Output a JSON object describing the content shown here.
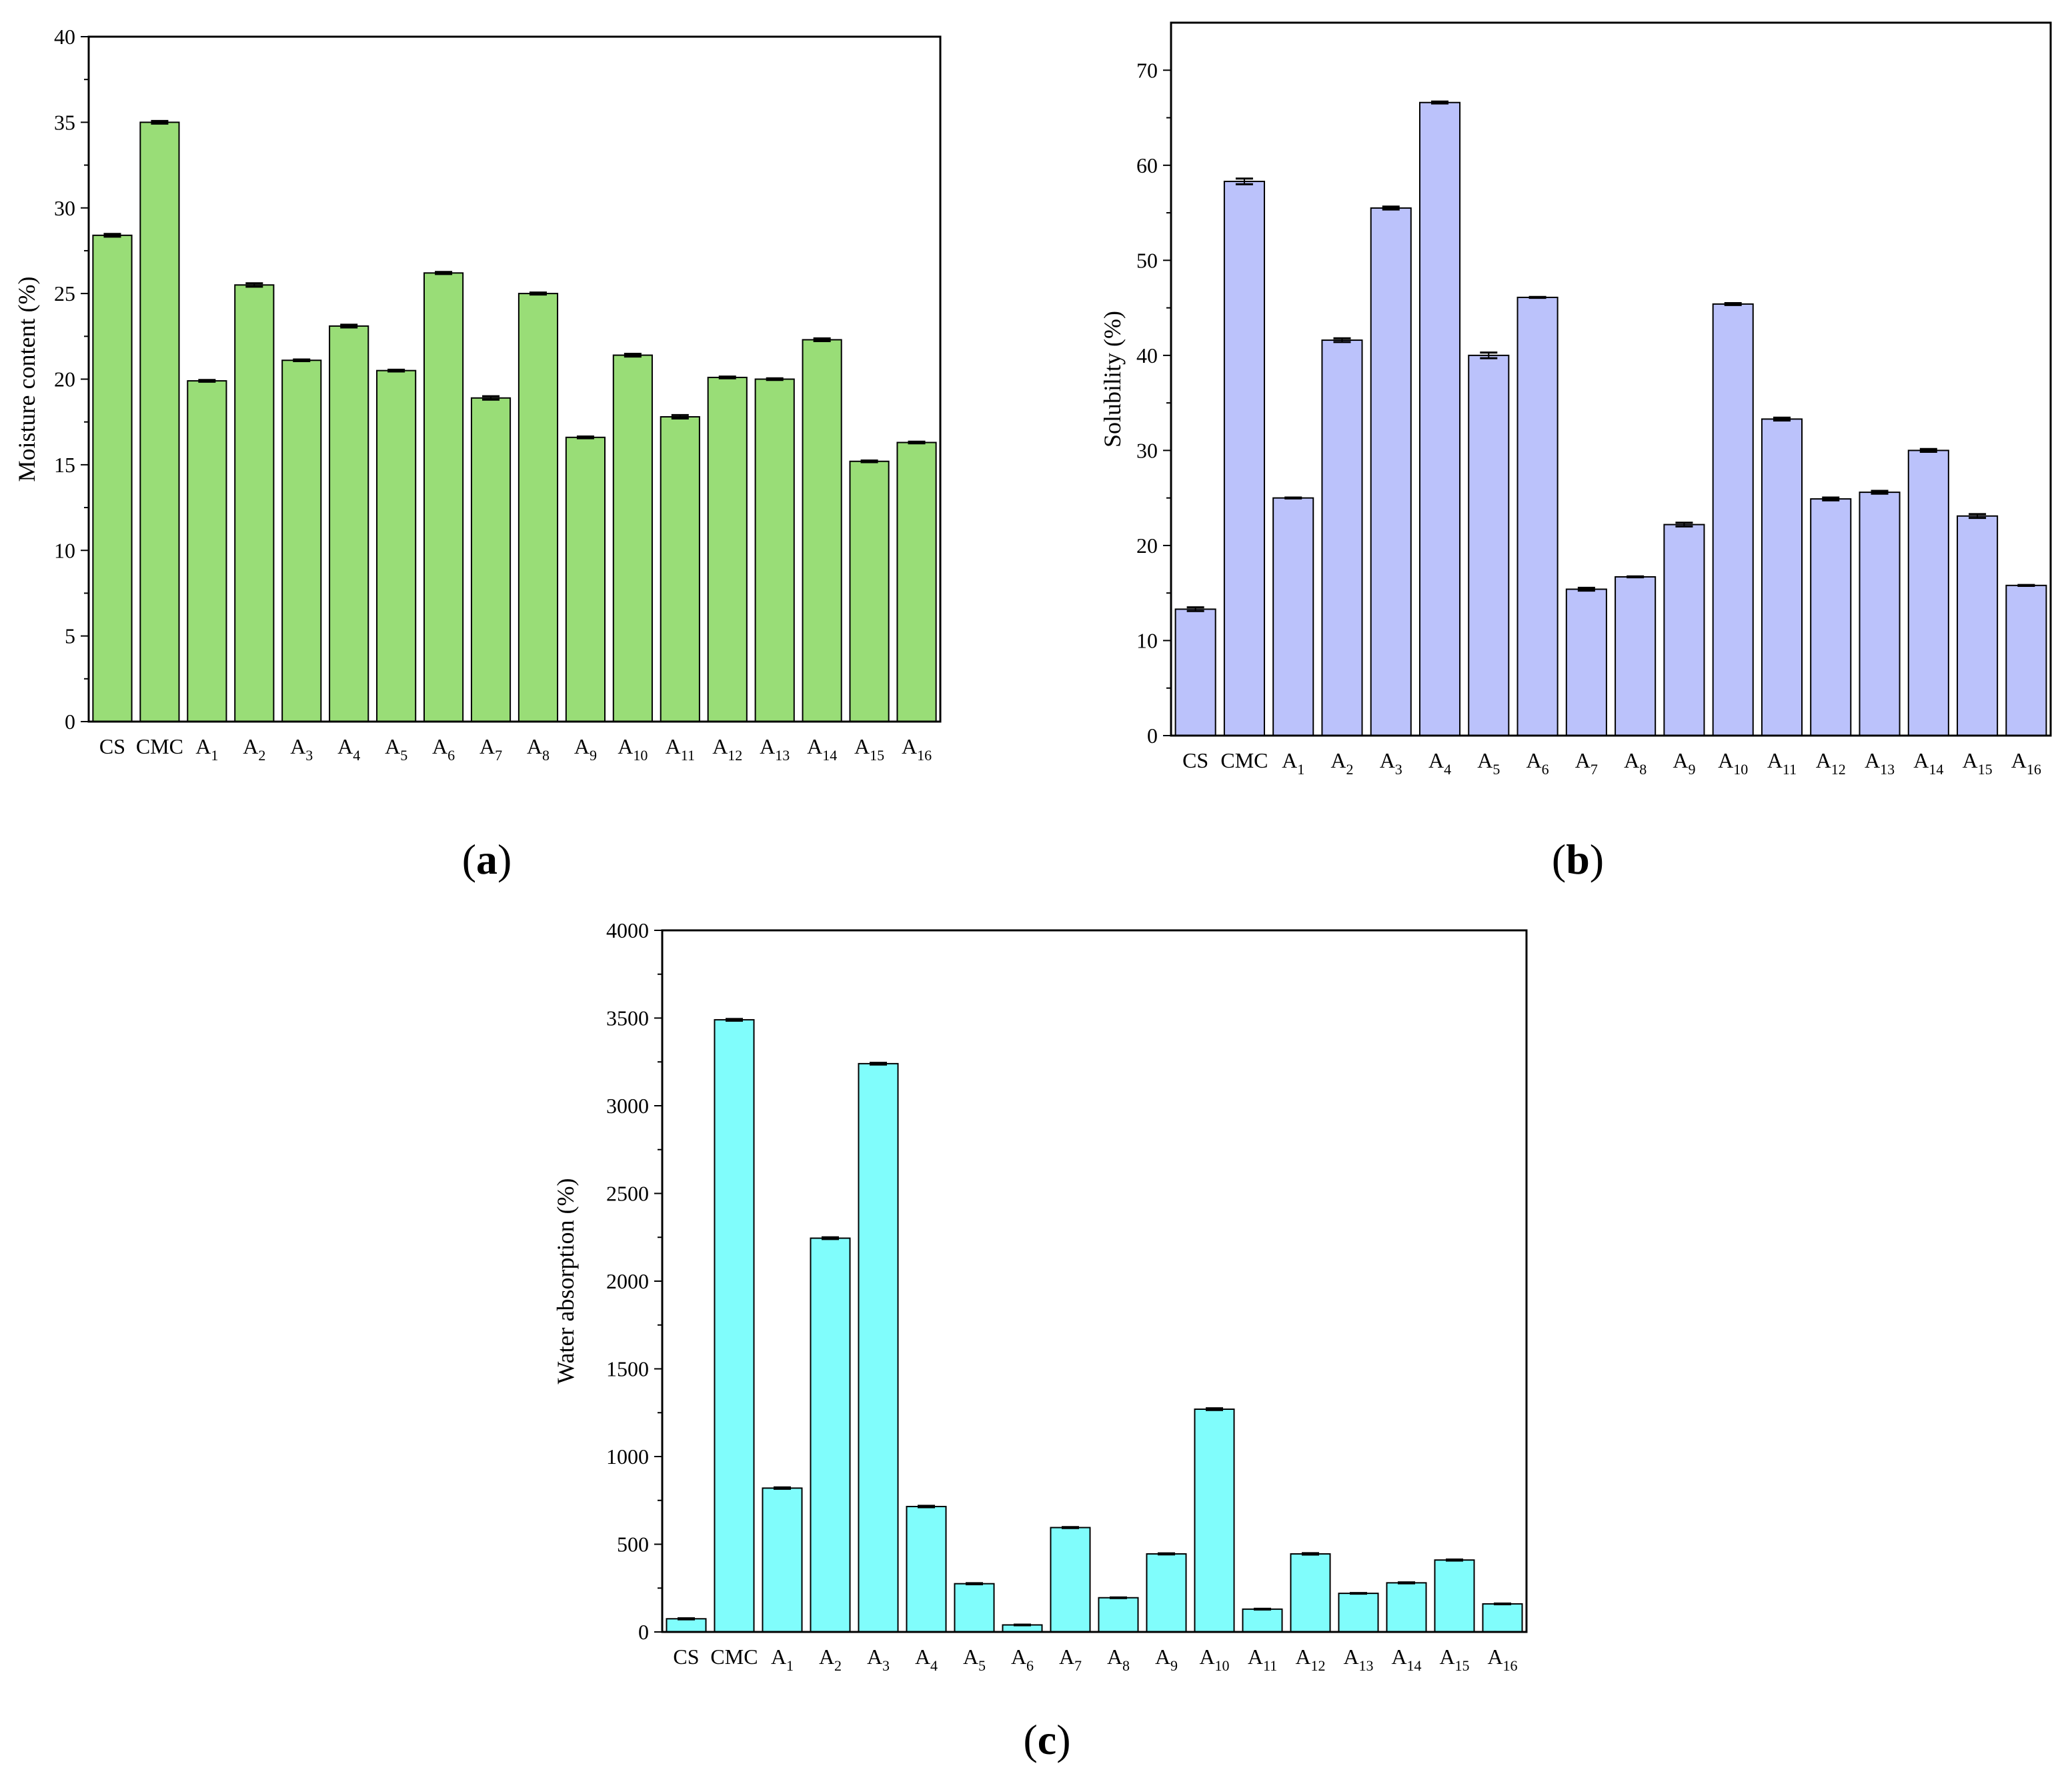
{
  "figure": {
    "panel_labels": [
      "a",
      "b",
      "c"
    ]
  },
  "chart_data": [
    {
      "type": "bar",
      "panel": "a",
      "color": "#99dd77",
      "title": "",
      "xlabel": "",
      "ylabel": "Moisture content (%)",
      "ylim": [
        0,
        40
      ],
      "yticks": [
        0,
        5,
        10,
        15,
        20,
        25,
        30,
        35,
        40
      ],
      "categories": [
        {
          "base": "CS",
          "sub": ""
        },
        {
          "base": "CMC",
          "sub": ""
        },
        {
          "base": "A",
          "sub": "1"
        },
        {
          "base": "A",
          "sub": "2"
        },
        {
          "base": "A",
          "sub": "3"
        },
        {
          "base": "A",
          "sub": "4"
        },
        {
          "base": "A",
          "sub": "5"
        },
        {
          "base": "A",
          "sub": "6"
        },
        {
          "base": "A",
          "sub": "7"
        },
        {
          "base": "A",
          "sub": "8"
        },
        {
          "base": "A",
          "sub": "9"
        },
        {
          "base": "A",
          "sub": "10"
        },
        {
          "base": "A",
          "sub": "11"
        },
        {
          "base": "A",
          "sub": "12"
        },
        {
          "base": "A",
          "sub": "13"
        },
        {
          "base": "A",
          "sub": "14"
        },
        {
          "base": "A",
          "sub": "15"
        },
        {
          "base": "A",
          "sub": "16"
        }
      ],
      "values": [
        28.4,
        35.0,
        19.9,
        25.5,
        21.1,
        23.1,
        20.5,
        26.2,
        18.9,
        25.0,
        16.6,
        21.4,
        17.8,
        20.1,
        20.0,
        22.3,
        15.2,
        16.3
      ],
      "errors": [
        0.08,
        0.08,
        0.05,
        0.1,
        0.05,
        0.08,
        0.05,
        0.06,
        0.1,
        0.06,
        0.05,
        0.08,
        0.1,
        0.05,
        0.05,
        0.08,
        0.05,
        0.05
      ]
    },
    {
      "type": "bar",
      "panel": "b",
      "color": "#bbc2fb",
      "title": "",
      "xlabel": "",
      "ylabel": "Solubility (%)",
      "ylim": [
        0,
        75
      ],
      "yticks": [
        0,
        10,
        20,
        30,
        40,
        50,
        60,
        70
      ],
      "categories": [
        {
          "base": "CS",
          "sub": ""
        },
        {
          "base": "CMC",
          "sub": ""
        },
        {
          "base": "A",
          "sub": "1"
        },
        {
          "base": "A",
          "sub": "2"
        },
        {
          "base": "A",
          "sub": "3"
        },
        {
          "base": "A",
          "sub": "4"
        },
        {
          "base": "A",
          "sub": "5"
        },
        {
          "base": "A",
          "sub": "6"
        },
        {
          "base": "A",
          "sub": "7"
        },
        {
          "base": "A",
          "sub": "8"
        },
        {
          "base": "A",
          "sub": "9"
        },
        {
          "base": "A",
          "sub": "10"
        },
        {
          "base": "A",
          "sub": "11"
        },
        {
          "base": "A",
          "sub": "12"
        },
        {
          "base": "A",
          "sub": "13"
        },
        {
          "base": "A",
          "sub": "14"
        },
        {
          "base": "A",
          "sub": "15"
        },
        {
          "base": "A",
          "sub": "16"
        }
      ],
      "values": [
        13.3,
        58.3,
        25.0,
        41.6,
        55.5,
        66.6,
        40.0,
        46.1,
        15.4,
        16.7,
        22.2,
        45.4,
        33.3,
        24.9,
        25.6,
        30.0,
        23.1,
        15.8
      ],
      "errors": [
        0.2,
        0.3,
        0.05,
        0.2,
        0.15,
        0.1,
        0.3,
        0.05,
        0.15,
        0.05,
        0.2,
        0.1,
        0.15,
        0.15,
        0.15,
        0.15,
        0.2,
        0.05
      ]
    },
    {
      "type": "bar",
      "panel": "c",
      "color": "#80fdfc",
      "title": "",
      "xlabel": "",
      "ylabel": "Water absorption (%)",
      "ylim": [
        0,
        4000
      ],
      "yticks": [
        0,
        500,
        1000,
        1500,
        2000,
        2500,
        3000,
        3500,
        4000
      ],
      "categories": [
        {
          "base": "CS",
          "sub": ""
        },
        {
          "base": "CMC",
          "sub": ""
        },
        {
          "base": "A",
          "sub": "1"
        },
        {
          "base": "A",
          "sub": "2"
        },
        {
          "base": "A",
          "sub": "3"
        },
        {
          "base": "A",
          "sub": "4"
        },
        {
          "base": "A",
          "sub": "5"
        },
        {
          "base": "A",
          "sub": "6"
        },
        {
          "base": "A",
          "sub": "7"
        },
        {
          "base": "A",
          "sub": "8"
        },
        {
          "base": "A",
          "sub": "9"
        },
        {
          "base": "A",
          "sub": "10"
        },
        {
          "base": "A",
          "sub": "11"
        },
        {
          "base": "A",
          "sub": "12"
        },
        {
          "base": "A",
          "sub": "13"
        },
        {
          "base": "A",
          "sub": "14"
        },
        {
          "base": "A",
          "sub": "15"
        },
        {
          "base": "A",
          "sub": "16"
        }
      ],
      "values": [
        75,
        3490,
        820,
        2245,
        3240,
        715,
        275,
        40,
        595,
        195,
        445,
        1270,
        130,
        445,
        220,
        280,
        410,
        160
      ],
      "errors": [
        3,
        5,
        4,
        5,
        5,
        4,
        3,
        2,
        3,
        2,
        3,
        5,
        2,
        4,
        2,
        3,
        3,
        2
      ]
    }
  ]
}
